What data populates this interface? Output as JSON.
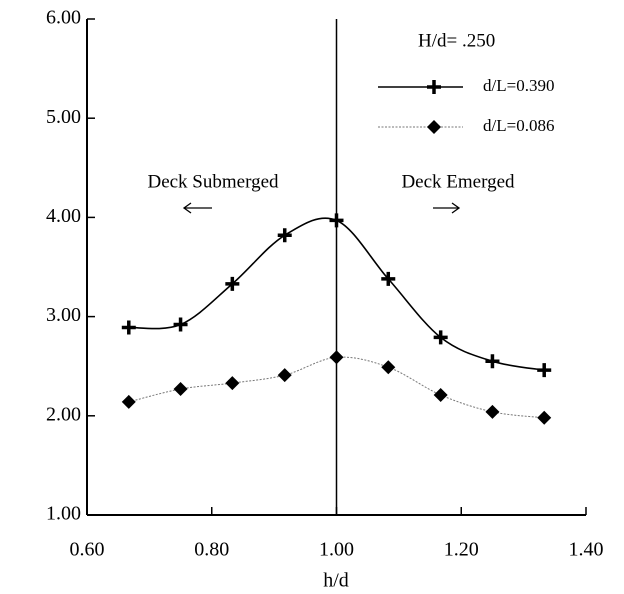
{
  "chart_data": {
    "type": "line",
    "x_label": "h/d",
    "annotations": [
      "H/d= .250",
      "Deck Submerged",
      "Deck Emerged"
    ],
    "x": [
      0.667,
      0.75,
      0.833,
      0.917,
      1.0,
      1.083,
      1.167,
      1.25,
      1.333
    ],
    "series": [
      {
        "name": "d/L=0.390",
        "color": "#000000",
        "marker": "plus",
        "values": [
          2.89,
          2.92,
          3.33,
          3.82,
          3.97,
          3.38,
          2.79,
          2.55,
          2.46
        ]
      },
      {
        "name": "d/L=0.086",
        "color": "#777777",
        "marker": "diamond",
        "values": [
          2.14,
          2.27,
          2.33,
          2.41,
          2.59,
          2.49,
          2.21,
          2.04,
          1.98
        ]
      }
    ],
    "xlim": [
      0.6,
      1.4
    ],
    "xticks": [
      {
        "value": 0.6,
        "label": "0.60"
      },
      {
        "value": 0.8,
        "label": "0.80"
      },
      {
        "value": 1.0,
        "label": "1.00"
      },
      {
        "value": 1.2,
        "label": "1.20"
      },
      {
        "value": 1.4,
        "label": "1.40"
      }
    ],
    "ylim": [
      1,
      6
    ],
    "yticks": [
      {
        "value": 1,
        "label": "1.00"
      },
      {
        "value": 2,
        "label": "2.00"
      },
      {
        "value": 3,
        "label": "3.00"
      },
      {
        "value": 4,
        "label": "4.00"
      },
      {
        "value": 5,
        "label": "5.00"
      },
      {
        "value": 6,
        "label": "6.00"
      }
    ],
    "vline": 1.0,
    "legend": "upper right",
    "smooth": true
  }
}
